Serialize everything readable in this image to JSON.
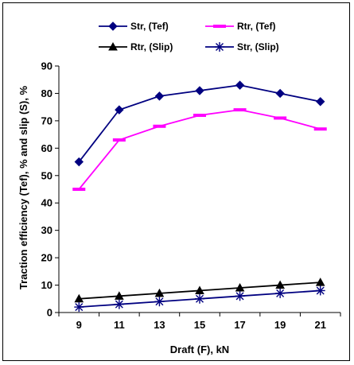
{
  "chart_data": {
    "type": "line",
    "title": "",
    "xlabel": "Draft (F), kN",
    "ylabel": "Traction efficiency  (Tef), % and slip (S), %",
    "x": [
      9,
      11,
      13,
      15,
      17,
      19,
      21
    ],
    "xlim": [
      8,
      22
    ],
    "ylim": [
      0,
      90
    ],
    "yticks": [
      0,
      10,
      20,
      30,
      40,
      50,
      60,
      70,
      80,
      90
    ],
    "grid": false,
    "legend_position": "top",
    "series": [
      {
        "name": "Str, (Tef)",
        "color": "#000080",
        "marker": "diamond",
        "values": [
          55,
          74,
          79,
          81,
          83,
          80,
          77
        ]
      },
      {
        "name": "Rtr, (Tef)",
        "color": "#FF00FF",
        "marker": "dash",
        "values": [
          45,
          63,
          68,
          72,
          74,
          71,
          67
        ]
      },
      {
        "name": "Rtr, (Slip)",
        "color": "#000000",
        "marker": "triangle",
        "values": [
          5,
          6,
          7,
          8,
          9,
          10,
          11
        ]
      },
      {
        "name": "Str, (Slip)",
        "color": "#000080",
        "marker": "asterisk",
        "values": [
          2,
          3,
          4,
          5,
          6,
          7,
          8
        ]
      }
    ]
  }
}
